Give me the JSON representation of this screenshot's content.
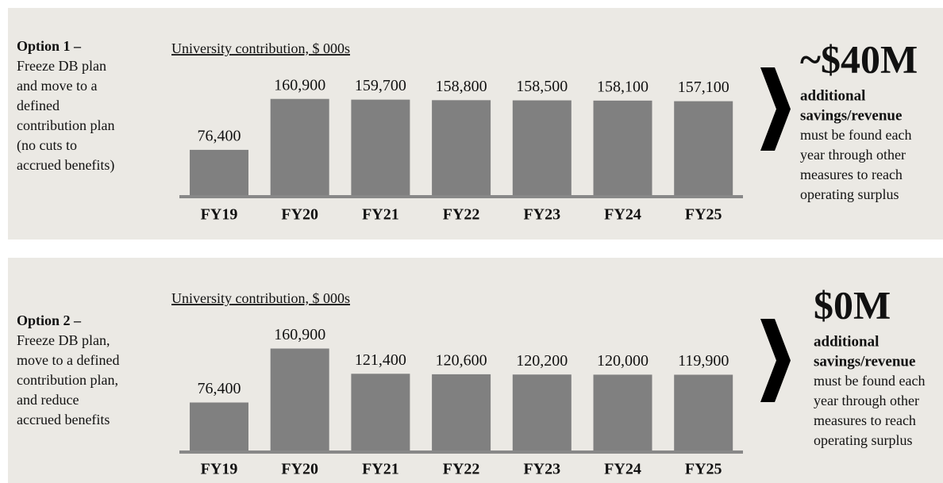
{
  "chart_data": [
    {
      "type": "bar",
      "title": "University contribution, $ 000s",
      "categories": [
        "FY19",
        "FY20",
        "FY21",
        "FY22",
        "FY23",
        "FY24",
        "FY25"
      ],
      "values": [
        76400,
        160900,
        159700,
        158800,
        158500,
        158100,
        157100
      ],
      "value_labels": [
        "76,400",
        "160,900",
        "159,700",
        "158,800",
        "158,500",
        "158,100",
        "157,100"
      ],
      "color": "#808080",
      "ylim": [
        0,
        200000
      ],
      "option": "Option 1 –",
      "description": [
        "Freeze DB plan",
        "and move to a",
        "defined",
        "contribution plan",
        "(no cuts to",
        "accrued benefits)"
      ],
      "headline": "~$40M",
      "note_bold": [
        "additional",
        "savings/revenue"
      ],
      "note": [
        "must be found each",
        "year through other",
        "measures to reach",
        "operating surplus"
      ]
    },
    {
      "type": "bar",
      "title": "University contribution, $ 000s",
      "categories": [
        "FY19",
        "FY20",
        "FY21",
        "FY22",
        "FY23",
        "FY24",
        "FY25"
      ],
      "values": [
        76400,
        160900,
        121400,
        120600,
        120200,
        120000,
        119900
      ],
      "value_labels": [
        "76,400",
        "160,900",
        "121,400",
        "120,600",
        "120,200",
        "120,000",
        "119,900"
      ],
      "color": "#808080",
      "ylim": [
        0,
        200000
      ],
      "option": "Option 2 –",
      "description": [
        "Freeze DB plan,",
        "move to a defined",
        "contribution plan,",
        "and reduce",
        "accrued benefits"
      ],
      "headline": "$0M",
      "note_bold": [
        "additional",
        "savings/revenue"
      ],
      "note": [
        "must be found each",
        "year through other",
        "measures to reach",
        "operating surplus"
      ]
    }
  ]
}
